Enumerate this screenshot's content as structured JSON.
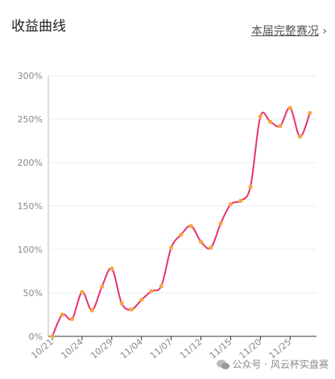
{
  "header": {
    "title": "收益曲线",
    "link": "本届完整赛况"
  },
  "chart_data": {
    "type": "line",
    "categories": [
      "10/21",
      null,
      null,
      "10/24",
      null,
      null,
      "10/29",
      null,
      null,
      "11/04",
      null,
      null,
      "11/07",
      null,
      null,
      "11/12",
      null,
      null,
      "11/15",
      null,
      null,
      "11/20",
      null,
      null,
      "11/25",
      null,
      null
    ],
    "series": [
      {
        "color": "#e8336b",
        "marker_color": "#f5a742",
        "values": [
          0,
          25,
          20,
          51,
          30,
          57,
          78,
          38,
          31,
          42,
          52,
          58,
          102,
          117,
          127,
          109,
          102,
          130,
          152,
          156,
          172,
          253,
          247,
          242,
          263,
          230,
          257
        ]
      }
    ],
    "ylim": [
      0,
      300
    ],
    "yticks": [
      {
        "value": 0,
        "label": "0%"
      },
      {
        "value": 50,
        "label": "50%"
      },
      {
        "value": 100,
        "label": "100%"
      },
      {
        "value": 150,
        "label": "150%"
      },
      {
        "value": 200,
        "label": "200%"
      },
      {
        "value": 250,
        "label": "250%"
      },
      {
        "value": 300,
        "label": "300%"
      }
    ],
    "grid": true,
    "smooth": true
  },
  "watermark": "公众号 · 风云杯实盘赛"
}
